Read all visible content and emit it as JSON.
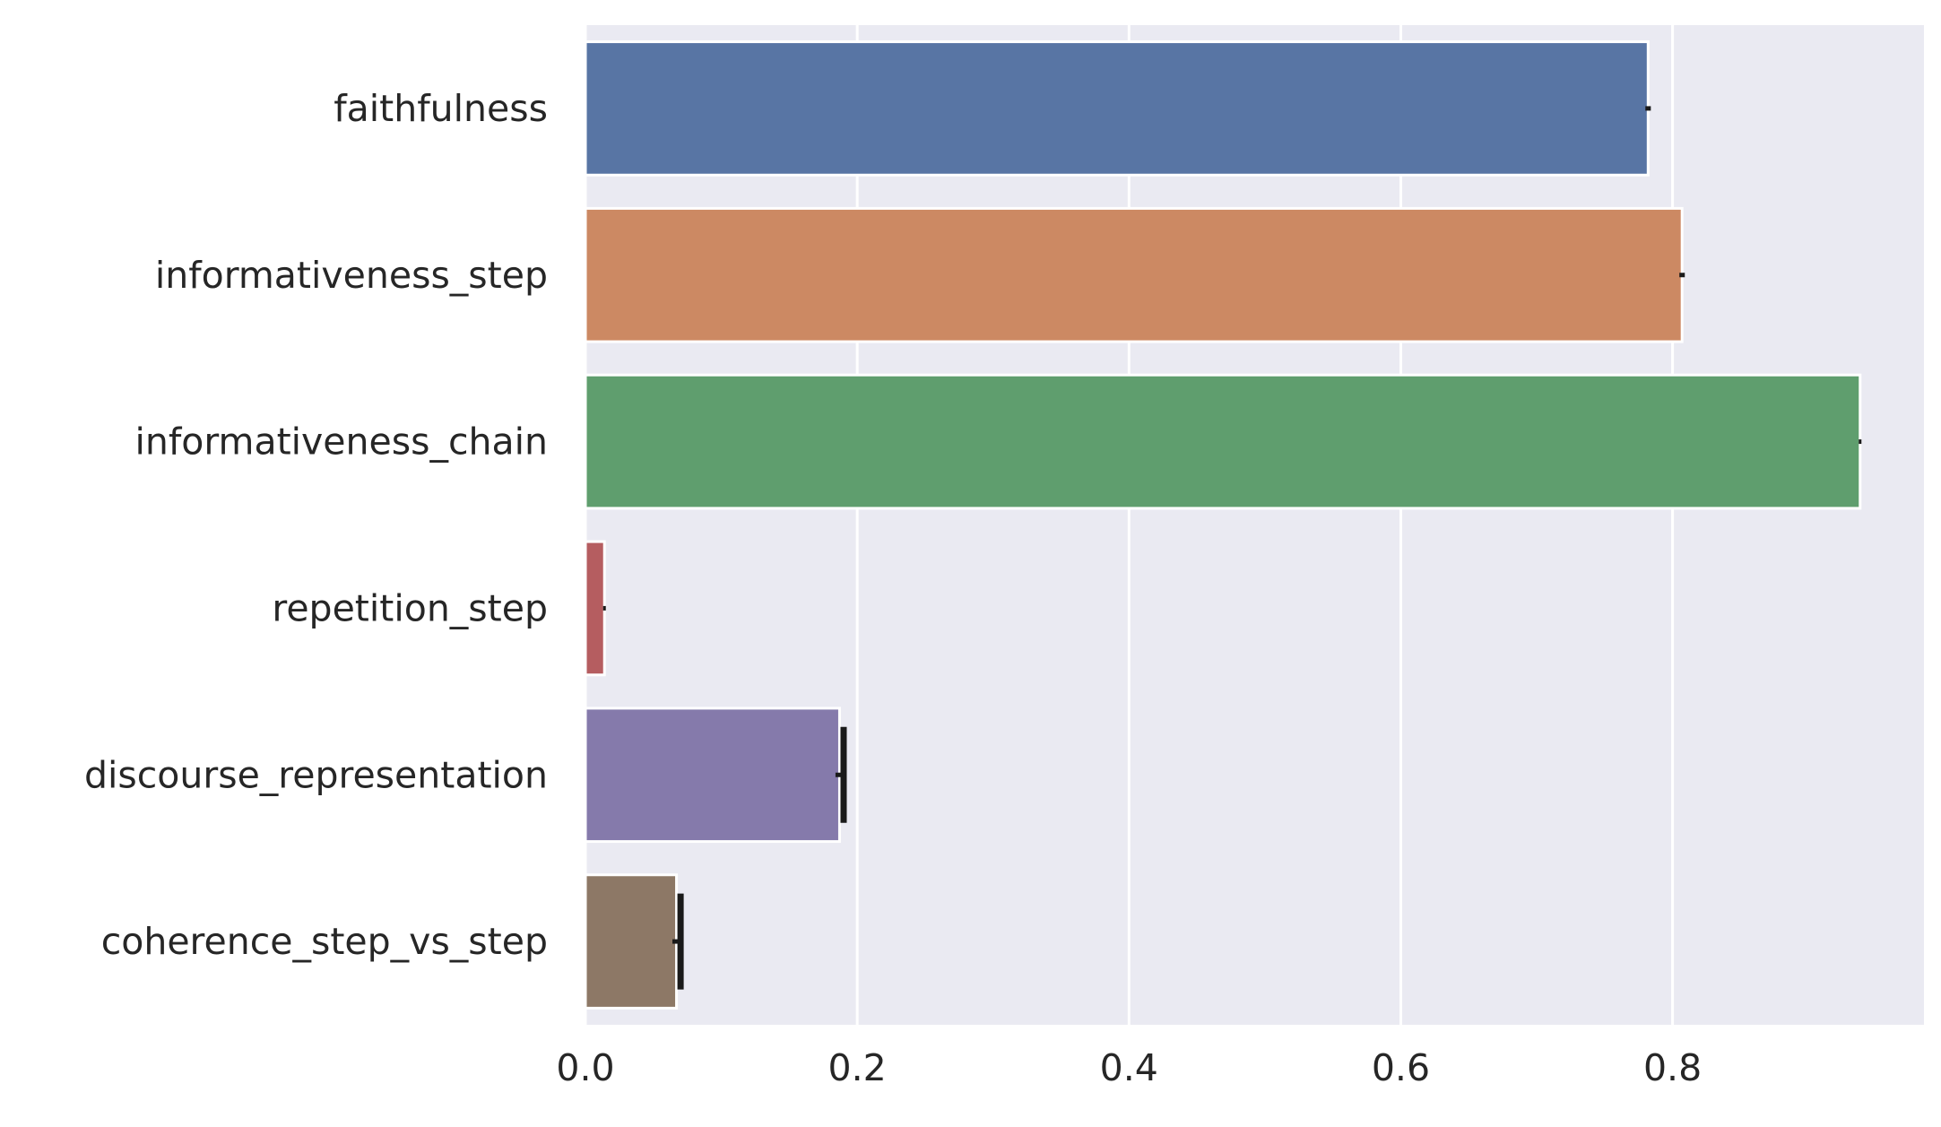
{
  "chart_data": {
    "type": "bar",
    "orientation": "horizontal",
    "title": "",
    "xlabel": "",
    "ylabel": "",
    "categories": [
      "faithfulness",
      "informativeness_step",
      "informativeness_chain",
      "repetition_step",
      "discourse_representation",
      "coherence_step_vs_step"
    ],
    "values": [
      0.782,
      0.807,
      0.938,
      0.014,
      0.187,
      0.067
    ],
    "errors": [
      0.002,
      0.002,
      0.001,
      0.001,
      0.003,
      0.003
    ],
    "colors": [
      "#5875a4",
      "#cc8963",
      "#5f9e6e",
      "#b55d60",
      "#857aab",
      "#8d7866"
    ],
    "xlim": [
      0,
      0.985
    ],
    "xticks": [
      0.0,
      0.2,
      0.4,
      0.6,
      0.8
    ],
    "xtick_labels": [
      "0.0",
      "0.2",
      "0.4",
      "0.6",
      "0.8"
    ],
    "grid": true,
    "background": "#eaeaf2",
    "gridline_color": "#ffffff",
    "errorbar_color": "#1a1a1a"
  }
}
